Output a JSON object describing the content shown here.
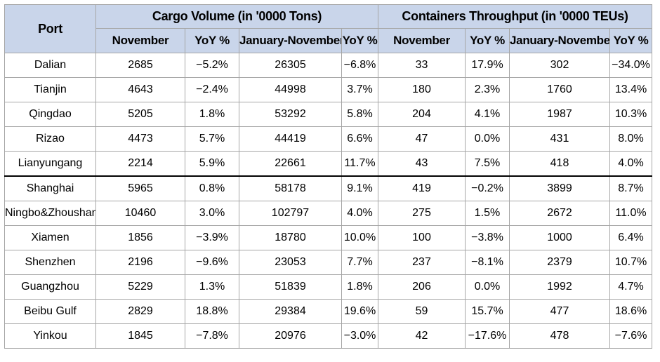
{
  "header": {
    "port": "Port",
    "cargo_group": "Cargo Volume (in '0000 Tons)",
    "container_group": "Containers Throughput (in '0000 TEUs)",
    "sub": [
      "November",
      "YoY %",
      "January-November",
      "YoY %",
      "November",
      "YoY %",
      "January-November",
      "YoY %"
    ]
  },
  "rows": [
    {
      "port": "Dalian",
      "vals": [
        "2685",
        "−5.2%",
        "26305",
        "−6.8%",
        "33",
        "17.9%",
        "302",
        "−34.0%"
      ]
    },
    {
      "port": "Tianjin",
      "vals": [
        "4643",
        "−2.4%",
        "44998",
        "3.7%",
        "180",
        "2.3%",
        "1760",
        "13.4%"
      ]
    },
    {
      "port": "Qingdao",
      "vals": [
        "5205",
        "1.8%",
        "53292",
        "5.8%",
        "204",
        "4.1%",
        "1987",
        "10.3%"
      ]
    },
    {
      "port": "Rizao",
      "vals": [
        "4473",
        "5.7%",
        "44419",
        "6.6%",
        "47",
        "0.0%",
        "431",
        "8.0%"
      ]
    },
    {
      "port": "Lianyungang",
      "vals": [
        "2214",
        "5.9%",
        "22661",
        "11.7%",
        "43",
        "7.5%",
        "418",
        "4.0%"
      ]
    },
    {
      "port": "Shanghai",
      "vals": [
        "5965",
        "0.8%",
        "58178",
        "9.1%",
        "419",
        "−0.2%",
        "3899",
        "8.7%"
      ]
    },
    {
      "port": "Ningbo&Zhoushan",
      "vals": [
        "10460",
        "3.0%",
        "102797",
        "4.0%",
        "275",
        "1.5%",
        "2672",
        "11.0%"
      ]
    },
    {
      "port": "Xiamen",
      "vals": [
        "1856",
        "−3.9%",
        "18780",
        "10.0%",
        "100",
        "−3.8%",
        "1000",
        "6.4%"
      ]
    },
    {
      "port": "Shenzhen",
      "vals": [
        "2196",
        "−9.6%",
        "23053",
        "7.7%",
        "237",
        "−8.1%",
        "2379",
        "10.7%"
      ]
    },
    {
      "port": "Guangzhou",
      "vals": [
        "5229",
        "1.3%",
        "51839",
        "1.8%",
        "206",
        "0.0%",
        "1992",
        "4.7%"
      ]
    },
    {
      "port": "Beibu Gulf",
      "vals": [
        "2829",
        "18.8%",
        "29384",
        "19.6%",
        "59",
        "15.7%",
        "477",
        "18.6%"
      ]
    },
    {
      "port": "Yinkou",
      "vals": [
        "1845",
        "−7.8%",
        "20976",
        "−3.0%",
        "42",
        "−17.6%",
        "478",
        "−7.6%"
      ]
    }
  ],
  "colors": {
    "header_bg": "#c9d5ea",
    "grid": "#a6a6a6",
    "group_divider": "#000000"
  }
}
